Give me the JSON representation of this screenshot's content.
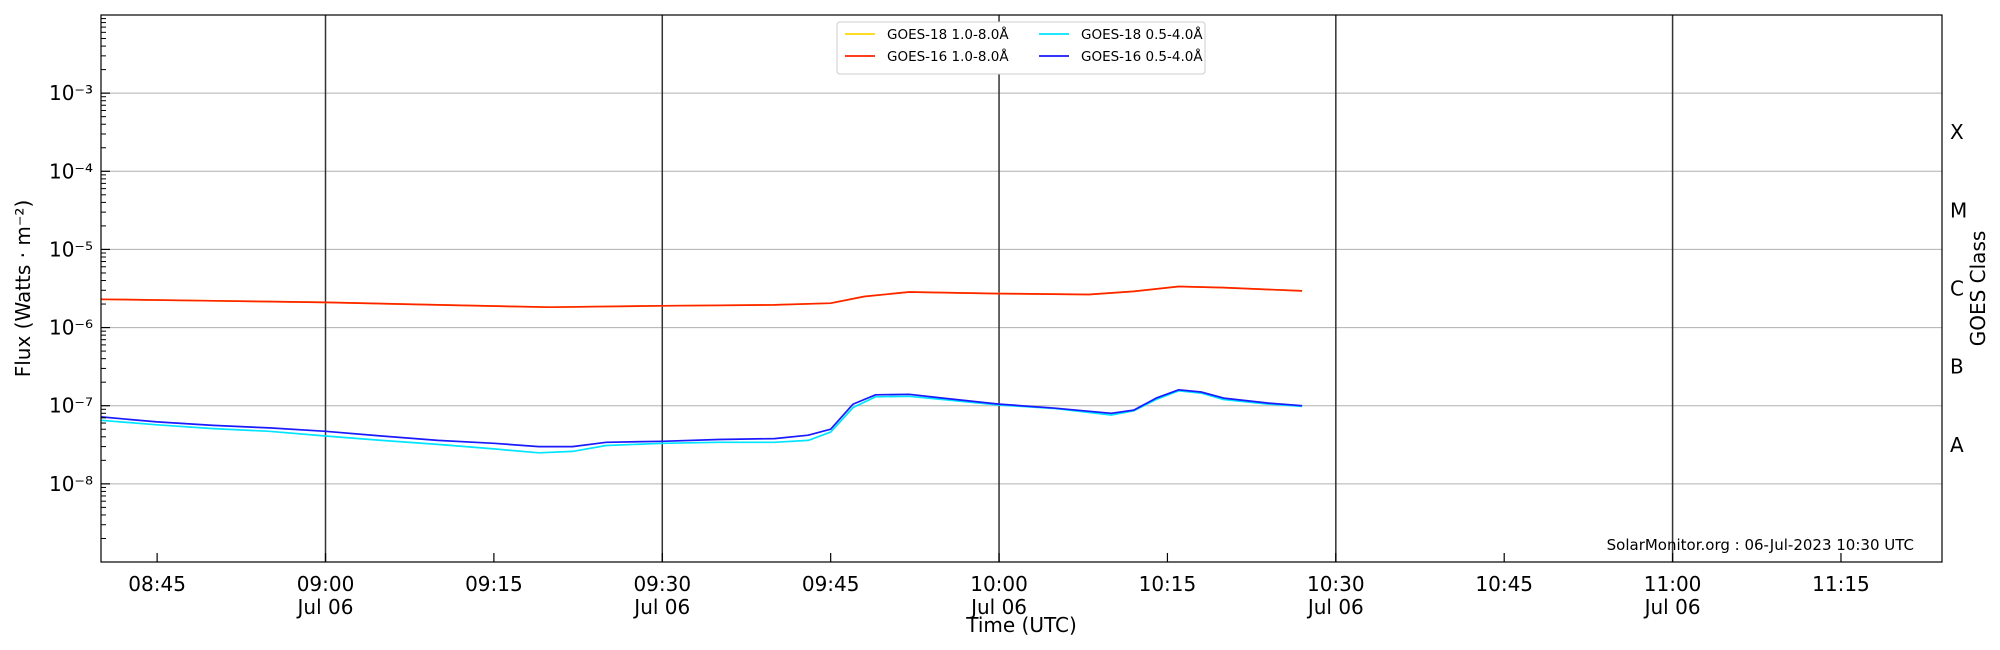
{
  "chart_data": {
    "type": "line",
    "xlabel": "Time (UTC)",
    "ylabel": "Flux (Watts · m⁻²)",
    "ylabel_right": "GOES Class",
    "y_scale": "log",
    "ylim": [
      1e-09,
      0.01
    ],
    "xlim": [
      "08:40",
      "11:24"
    ],
    "x_ticks": [
      {
        "t": "08:45",
        "date": ""
      },
      {
        "t": "09:00",
        "date": "Jul 06"
      },
      {
        "t": "09:15",
        "date": ""
      },
      {
        "t": "09:30",
        "date": "Jul 06"
      },
      {
        "t": "09:45",
        "date": ""
      },
      {
        "t": "10:00",
        "date": "Jul 06"
      },
      {
        "t": "10:15",
        "date": ""
      },
      {
        "t": "10:30",
        "date": "Jul 06"
      },
      {
        "t": "10:45",
        "date": ""
      },
      {
        "t": "11:00",
        "date": "Jul 06"
      },
      {
        "t": "11:15",
        "date": ""
      }
    ],
    "y_ticks": [
      {
        "exp": -3,
        "label": "10⁻³"
      },
      {
        "exp": -4,
        "label": "10⁻⁴"
      },
      {
        "exp": -5,
        "label": "10⁻⁵"
      },
      {
        "exp": -6,
        "label": "10⁻⁶"
      },
      {
        "exp": -7,
        "label": "10⁻⁷"
      },
      {
        "exp": -8,
        "label": "10⁻⁸"
      }
    ],
    "goes_classes": [
      {
        "label": "X",
        "exp": -3.5
      },
      {
        "label": "M",
        "exp": -4.5
      },
      {
        "label": "C",
        "exp": -5.5
      },
      {
        "label": "B",
        "exp": -6.5
      },
      {
        "label": "A",
        "exp": -7.5
      }
    ],
    "vertical_lines": [
      "09:00",
      "09:30",
      "10:00",
      "10:30",
      "11:00"
    ],
    "grid": "horizontal",
    "legend_position": "top-center",
    "annotation": "SolarMonitor.org : 06-Jul-2023 10:30 UTC",
    "series": [
      {
        "name": "GOES-18 1.0-8.0Å",
        "color": "#ffd700",
        "x": [
          "08:40",
          "08:50",
          "09:00",
          "09:10",
          "09:20",
          "09:30",
          "09:40",
          "09:45",
          "09:48",
          "09:52",
          "10:00",
          "10:08",
          "10:12",
          "10:16",
          "10:20",
          "10:27"
        ],
        "y": [
          2.3e-06,
          2.2e-06,
          2.1e-06,
          1.95e-06,
          1.82e-06,
          1.9e-06,
          1.95e-06,
          2.05e-06,
          2.5e-06,
          2.85e-06,
          2.72e-06,
          2.65e-06,
          2.9e-06,
          3.35e-06,
          3.25e-06,
          2.95e-06
        ]
      },
      {
        "name": "GOES-16 1.0-8.0Å",
        "color": "#ff2200",
        "x": [
          "08:40",
          "08:50",
          "09:00",
          "09:10",
          "09:20",
          "09:30",
          "09:40",
          "09:45",
          "09:48",
          "09:52",
          "10:00",
          "10:08",
          "10:12",
          "10:16",
          "10:20",
          "10:27"
        ],
        "y": [
          2.3e-06,
          2.2e-06,
          2.1e-06,
          1.95e-06,
          1.82e-06,
          1.9e-06,
          1.95e-06,
          2.05e-06,
          2.5e-06,
          2.85e-06,
          2.72e-06,
          2.65e-06,
          2.9e-06,
          3.35e-06,
          3.25e-06,
          2.95e-06
        ]
      },
      {
        "name": "GOES-18 0.5-4.0Å",
        "color": "#00e5ff",
        "x": [
          "08:40",
          "08:45",
          "08:50",
          "08:55",
          "09:00",
          "09:05",
          "09:10",
          "09:15",
          "09:19",
          "09:22",
          "09:25",
          "09:30",
          "09:35",
          "09:40",
          "09:43",
          "09:45",
          "09:47",
          "09:49",
          "09:52",
          "09:55",
          "10:00",
          "10:05",
          "10:10",
          "10:12",
          "10:14",
          "10:16",
          "10:18",
          "10:20",
          "10:24",
          "10:27"
        ],
        "y": [
          6.5e-08,
          5.7e-08,
          5.1e-08,
          4.7e-08,
          4.1e-08,
          3.6e-08,
          3.2e-08,
          2.8e-08,
          2.5e-08,
          2.6e-08,
          3.1e-08,
          3.3e-08,
          3.4e-08,
          3.4e-08,
          3.6e-08,
          4.6e-08,
          9.5e-08,
          1.3e-07,
          1.32e-07,
          1.2e-07,
          1.02e-07,
          9.2e-08,
          7.6e-08,
          8.6e-08,
          1.2e-07,
          1.55e-07,
          1.45e-07,
          1.2e-07,
          1.05e-07,
          9.8e-08
        ]
      },
      {
        "name": "GOES-16 0.5-4.0Å",
        "color": "#1a1aff",
        "x": [
          "08:40",
          "08:45",
          "08:50",
          "08:55",
          "09:00",
          "09:05",
          "09:10",
          "09:15",
          "09:19",
          "09:22",
          "09:25",
          "09:30",
          "09:35",
          "09:40",
          "09:43",
          "09:45",
          "09:47",
          "09:49",
          "09:52",
          "09:55",
          "10:00",
          "10:05",
          "10:10",
          "10:12",
          "10:14",
          "10:16",
          "10:18",
          "10:20",
          "10:24",
          "10:27"
        ],
        "y": [
          7.2e-08,
          6.2e-08,
          5.6e-08,
          5.2e-08,
          4.7e-08,
          4.1e-08,
          3.6e-08,
          3.3e-08,
          3e-08,
          3e-08,
          3.4e-08,
          3.5e-08,
          3.7e-08,
          3.8e-08,
          4.2e-08,
          5e-08,
          1.05e-07,
          1.38e-07,
          1.4e-07,
          1.25e-07,
          1.05e-07,
          9.3e-08,
          8e-08,
          8.8e-08,
          1.25e-07,
          1.6e-07,
          1.5e-07,
          1.25e-07,
          1.08e-07,
          1e-07
        ]
      }
    ]
  }
}
